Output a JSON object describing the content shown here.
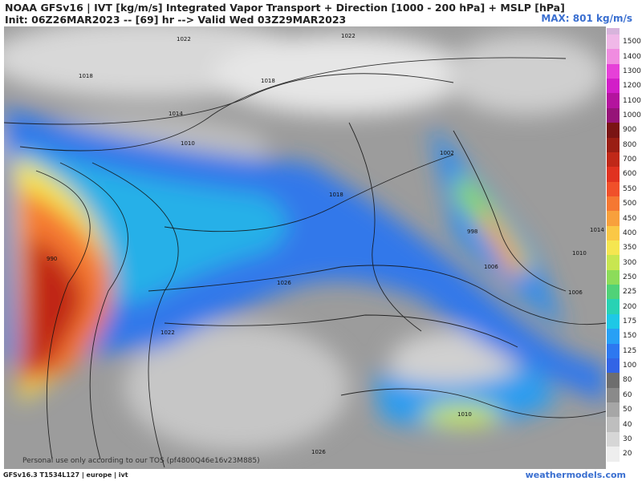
{
  "header": {
    "title": "NOAA GFSv16 | IVT [kg/m/s] Integrated Vapor Transport + Direction [1000 - 200 hPa] + MSLP [hPa]",
    "subtitle": "Init: 06Z26MAR2023 -- [69] hr --> Valid Wed 03Z29MAR2023",
    "max": "MAX: 801 kg/m/s"
  },
  "colorbar": [
    {
      "label": "1500",
      "color": "#f0b8e8"
    },
    {
      "label": "1400",
      "color": "#f08ce0"
    },
    {
      "label": "1300",
      "color": "#e640d8"
    },
    {
      "label": "1200",
      "color": "#d21ec8"
    },
    {
      "label": "1100",
      "color": "#b4149e"
    },
    {
      "label": "1000",
      "color": "#961478"
    },
    {
      "label": "900",
      "color": "#7a1414"
    },
    {
      "label": "800",
      "color": "#9a1e14"
    },
    {
      "label": "700",
      "color": "#c02818"
    },
    {
      "label": "600",
      "color": "#e03220"
    },
    {
      "label": "550",
      "color": "#f0502a"
    },
    {
      "label": "500",
      "color": "#f57832"
    },
    {
      "label": "450",
      "color": "#f8a03c"
    },
    {
      "label": "400",
      "color": "#fac846"
    },
    {
      "label": "350",
      "color": "#f5e650"
    },
    {
      "label": "300",
      "color": "#c8e650"
    },
    {
      "label": "250",
      "color": "#8cdc5a"
    },
    {
      "label": "225",
      "color": "#50d278"
    },
    {
      "label": "200",
      "color": "#28d2b4"
    },
    {
      "label": "175",
      "color": "#1ec8e6"
    },
    {
      "label": "150",
      "color": "#28a0f5"
    },
    {
      "label": "125",
      "color": "#2d78f0"
    },
    {
      "label": "100",
      "color": "#3264e6"
    },
    {
      "label": "80",
      "color": "#6e6e6e"
    },
    {
      "label": "60",
      "color": "#8a8a8a"
    },
    {
      "label": "50",
      "color": "#a6a6a6"
    },
    {
      "label": "40",
      "color": "#bebebe"
    },
    {
      "label": "30",
      "color": "#d6d6d6"
    },
    {
      "label": "20",
      "color": "#eeeeee"
    }
  ],
  "isobars": [
    "1022",
    "1018",
    "1014",
    "1010",
    "990",
    "1022",
    "1018",
    "1026",
    "1002",
    "998",
    "1006",
    "1014",
    "1010",
    "1006",
    "1018",
    "1022",
    "1010",
    "1026"
  ],
  "footer": {
    "model": "GFSv16.3 T1534L127 | europe | ivt",
    "notice": "Personal use only according to our TOS (pf4800Q46e16v23M885)",
    "site": "weathermodels.com"
  }
}
